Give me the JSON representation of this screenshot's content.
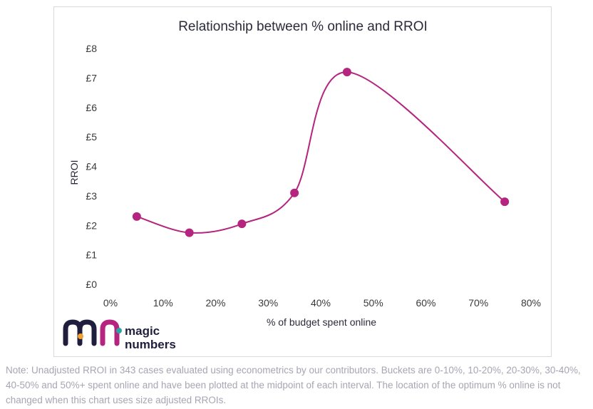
{
  "chart_data": {
    "type": "line",
    "title": "Relationship between % online and RROI",
    "xlabel": "% of budget spent online",
    "ylabel": "RROI",
    "x_ticks": [
      "0%",
      "10%",
      "20%",
      "30%",
      "40%",
      "50%",
      "60%",
      "70%",
      "80%"
    ],
    "y_ticks": [
      "£0",
      "£1",
      "£2",
      "£3",
      "£4",
      "£5",
      "£6",
      "£7",
      "£8"
    ],
    "xlim": [
      0,
      80
    ],
    "ylim": [
      0,
      8
    ],
    "smooth": true,
    "grid": false,
    "series": [
      {
        "color": "#b5247e",
        "points": [
          {
            "x": 5,
            "y": 2.3
          },
          {
            "x": 15,
            "y": 1.75
          },
          {
            "x": 25,
            "y": 2.05
          },
          {
            "x": 35,
            "y": 3.1
          },
          {
            "x": 45,
            "y": 7.2
          },
          {
            "x": 75,
            "y": 2.8
          }
        ]
      }
    ]
  },
  "logo": {
    "text_line1": "magic",
    "text_line2": "numbers",
    "colors": [
      "#1f1f3d",
      "#b5247e",
      "#f4a02c",
      "#2aa6a0"
    ]
  },
  "note": "Note: Unadjusted RROI in 343 cases evaluated using econometrics by our contributors. Buckets are 0-10%, 10-20%, 20-30%, 30-40%, 40-50% and 50%+ spent online and have been plotted at the midpoint of each interval. The location of the optimum % online is not changed when this chart uses size adjusted RROIs."
}
